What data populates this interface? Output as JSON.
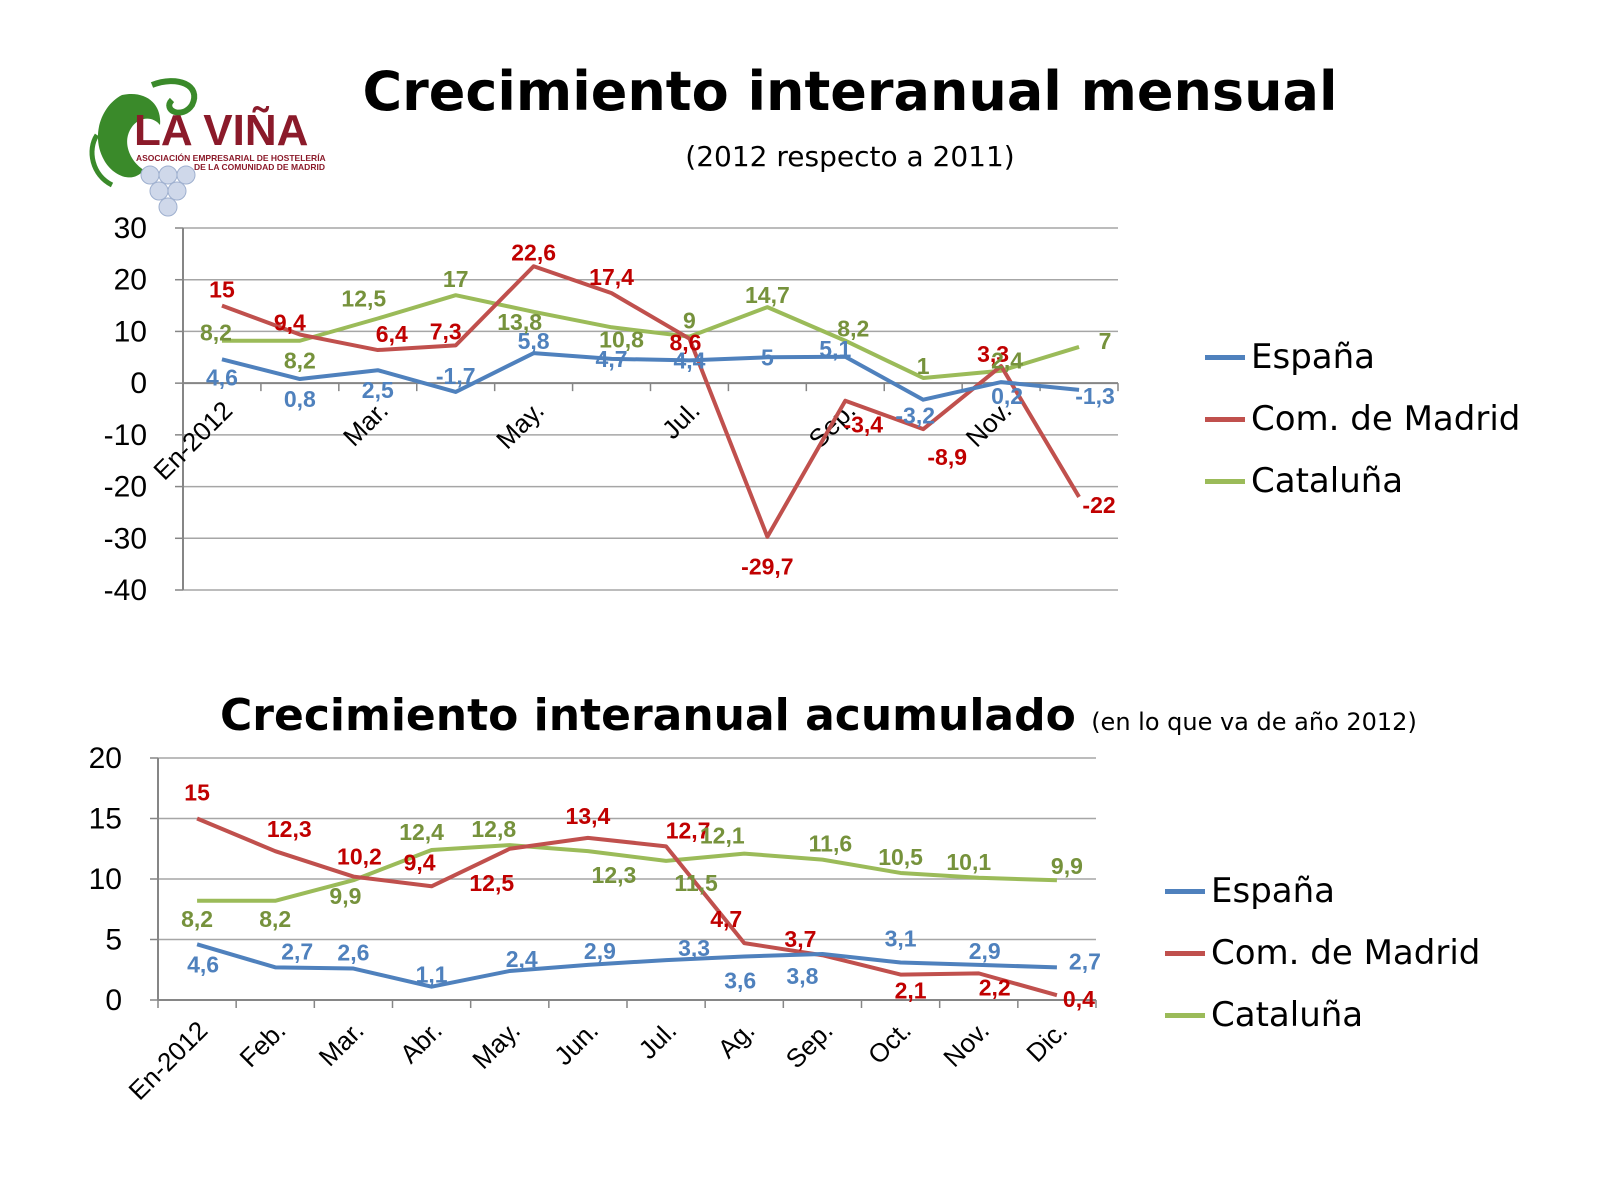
{
  "logo": {
    "name": "LA VIÑA",
    "tagline_line1": "ASOCIACIÓN EMPRESARIAL DE HOSTELERÍA",
    "tagline_line2": "DE LA COMUNIDAD DE MADRID"
  },
  "colors": {
    "espana": "#4f81bd",
    "madrid": "#c0504d",
    "cataluna": "#9bbb59"
  },
  "label_colors": {
    "espana": "#4f81bd",
    "madrid": "#c00000",
    "cataluna": "#76923c"
  },
  "chart_data": [
    {
      "type": "line",
      "title": "Crecimiento interanual mensual",
      "subtitle": "(2012 respecto a 2011)",
      "x_labels": [
        "En-2012",
        "",
        "Mar.",
        "",
        "May.",
        "",
        "Jul.",
        "",
        "Sep.",
        "",
        "Nov.",
        ""
      ],
      "ylim": [
        -40,
        30
      ],
      "yticks": [
        30,
        20,
        10,
        0,
        -10,
        -20,
        -30,
        -40
      ],
      "grid": true,
      "legend": "right",
      "series": [
        {
          "key": "espana",
          "name": "España",
          "values": [
            4.6,
            0.8,
            2.5,
            -1.7,
            5.8,
            4.7,
            4.4,
            5,
            5.1,
            -3.2,
            0.2,
            -1.3
          ],
          "labels": [
            "4,6",
            "0,8",
            "2,5",
            "-1,7",
            "5,8",
            "4,7",
            "4,4",
            "5",
            "5,1",
            "-3,2",
            "0,2",
            "-1,3"
          ]
        },
        {
          "key": "madrid",
          "name": "Com. de Madrid",
          "values": [
            15,
            9.4,
            6.4,
            7.3,
            22.6,
            17.4,
            8.6,
            -29.7,
            -3.4,
            -8.9,
            3.3,
            -22
          ],
          "labels": [
            "15",
            "9,4",
            "6,4",
            "7,3",
            "22,6",
            "17,4",
            "8,6",
            "-29,7",
            "-3,4",
            "-8,9",
            "3,3",
            "-22"
          ]
        },
        {
          "key": "cataluna",
          "name": "Cataluña",
          "values": [
            8.2,
            8.2,
            12.5,
            17,
            13.8,
            10.8,
            9,
            14.7,
            8.2,
            1,
            2.4,
            7
          ],
          "labels": [
            "8,2",
            "8,2",
            "12,5",
            "17",
            "13,8",
            "10,8",
            "9",
            "14,7",
            "8,2",
            "1",
            "2,4",
            "7"
          ]
        }
      ]
    },
    {
      "type": "line",
      "title": "Crecimiento interanual acumulado",
      "subtitle": "(en lo que va de año 2012)",
      "x_labels": [
        "En-2012",
        "Feb.",
        "Mar.",
        "Abr.",
        "May.",
        "Jun.",
        "Jul.",
        "Ag.",
        "Sep.",
        "Oct.",
        "Nov.",
        "Dic."
      ],
      "ylim": [
        0,
        20
      ],
      "yticks": [
        20,
        15,
        10,
        5,
        0
      ],
      "grid": true,
      "legend": "right",
      "series": [
        {
          "key": "espana",
          "name": "España",
          "values": [
            4.6,
            2.7,
            2.6,
            1.1,
            2.4,
            2.9,
            3.3,
            3.6,
            3.8,
            3.1,
            2.9,
            2.7
          ],
          "labels": [
            "4,6",
            "2,7",
            "2,6",
            "1,1",
            "2,4",
            "2,9",
            "3,3",
            "3,6",
            "3,8",
            "3,1",
            "2,9",
            "2,7"
          ]
        },
        {
          "key": "madrid",
          "name": "Com. de Madrid",
          "values": [
            15,
            12.3,
            10.2,
            9.4,
            12.5,
            13.4,
            12.7,
            4.7,
            3.7,
            2.1,
            2.2,
            0.4
          ],
          "labels": [
            "15",
            "12,3",
            "10,2",
            "9,4",
            "12,5",
            "13,4",
            "12,7",
            "4,7",
            "3,7",
            "2,1",
            "2,2",
            "0,4"
          ]
        },
        {
          "key": "cataluna",
          "name": "Cataluña",
          "values": [
            8.2,
            8.2,
            9.9,
            12.4,
            12.8,
            12.3,
            11.5,
            12.1,
            11.6,
            10.5,
            10.1,
            9.9
          ],
          "labels": [
            "8,2",
            "8,2",
            "9,9",
            "12,4",
            "12,8",
            "12,3",
            "11,5",
            "12,1",
            "11,6",
            "10,5",
            "10,1",
            "9,9"
          ]
        }
      ]
    }
  ]
}
